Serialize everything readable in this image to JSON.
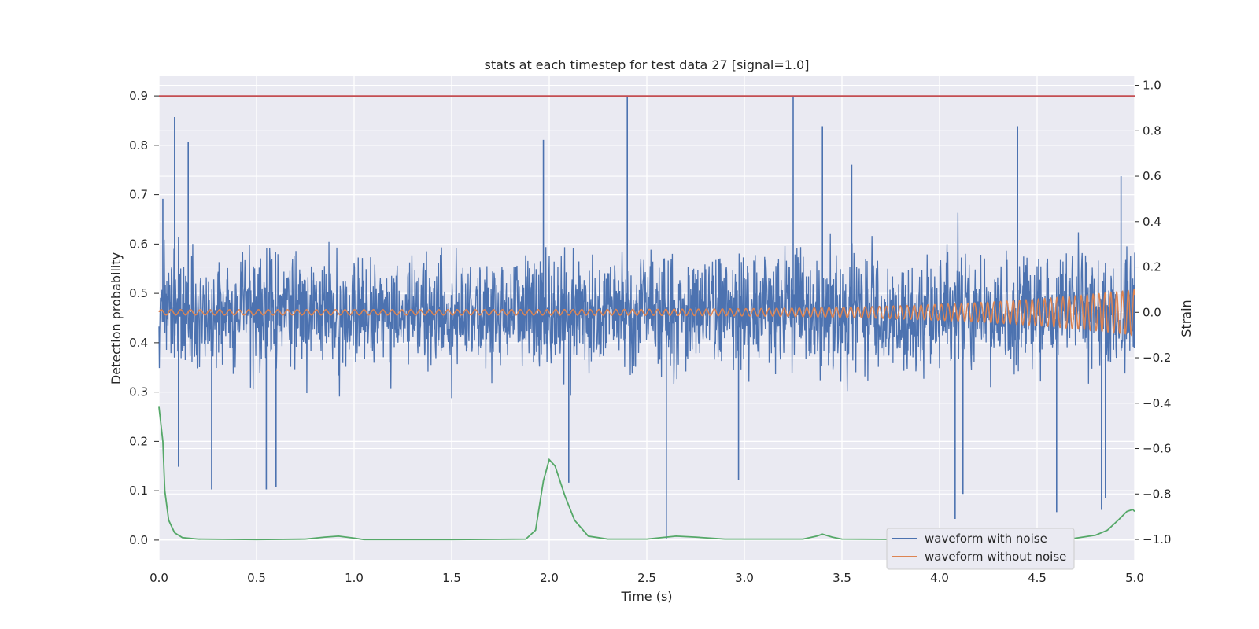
{
  "chart_data": {
    "type": "line",
    "title": "stats at each timestep for test data 27 [signal=1.0]",
    "xlabel": "Time (s)",
    "ylabel": "Detection probability",
    "y2label": "Strain",
    "xlim": [
      0.0,
      5.0
    ],
    "ylim": [
      -0.04,
      0.94
    ],
    "y2lim": [
      -1.09,
      1.04
    ],
    "xticks": [
      "0.0",
      "0.5",
      "1.0",
      "1.5",
      "2.0",
      "2.5",
      "3.0",
      "3.5",
      "4.0",
      "4.5",
      "5.0"
    ],
    "yticks": [
      "0.0",
      "0.1",
      "0.2",
      "0.3",
      "0.4",
      "0.5",
      "0.6",
      "0.7",
      "0.8",
      "0.9"
    ],
    "y2ticks": [
      "−1.0",
      "−0.8",
      "−0.6",
      "−0.4",
      "−0.2",
      "0.0",
      "0.2",
      "0.4",
      "0.6",
      "0.8",
      "1.0"
    ],
    "grid": true,
    "legend_position": "lower-right",
    "threshold": {
      "value": 0.9,
      "color": "#c44e52"
    },
    "series": [
      {
        "name": "waveform with noise",
        "axis": "right",
        "color": "#4c72b0",
        "description": "noisy strain, roughly -0.4..0.4 with spikes",
        "spikes": [
          {
            "x": 0.02,
            "y": 0.5
          },
          {
            "x": 0.08,
            "y": 0.86
          },
          {
            "x": 0.1,
            "y": -0.68
          },
          {
            "x": 0.15,
            "y": 0.75
          },
          {
            "x": 0.27,
            "y": -0.78
          },
          {
            "x": 0.55,
            "y": -0.78
          },
          {
            "x": 0.6,
            "y": -0.77
          },
          {
            "x": 1.97,
            "y": 0.76
          },
          {
            "x": 2.1,
            "y": -0.75
          },
          {
            "x": 2.4,
            "y": 0.95
          },
          {
            "x": 2.6,
            "y": -1.0
          },
          {
            "x": 2.97,
            "y": -0.74
          },
          {
            "x": 3.25,
            "y": 0.95
          },
          {
            "x": 3.4,
            "y": 0.82
          },
          {
            "x": 3.55,
            "y": 0.65
          },
          {
            "x": 4.08,
            "y": -0.91
          },
          {
            "x": 4.12,
            "y": -0.8
          },
          {
            "x": 4.4,
            "y": 0.82
          },
          {
            "x": 4.6,
            "y": -0.88
          },
          {
            "x": 4.83,
            "y": -0.87
          },
          {
            "x": 4.85,
            "y": -0.82
          },
          {
            "x": 4.93,
            "y": 0.6
          }
        ]
      },
      {
        "name": "waveform without noise",
        "axis": "right",
        "color": "#dd8452",
        "description": "chirp centred at 0, amplitude growing to ~0.1 at 5.0 s"
      },
      {
        "name": "",
        "axis": "left",
        "color": "#55a868",
        "points": [
          [
            0.0,
            0.27
          ],
          [
            0.02,
            0.2
          ],
          [
            0.03,
            0.1
          ],
          [
            0.05,
            0.04
          ],
          [
            0.08,
            0.015
          ],
          [
            0.12,
            0.005
          ],
          [
            0.2,
            0.002
          ],
          [
            0.5,
            0.001
          ],
          [
            0.75,
            0.002
          ],
          [
            0.85,
            0.006
          ],
          [
            0.92,
            0.008
          ],
          [
            1.0,
            0.004
          ],
          [
            1.05,
            0.001
          ],
          [
            1.5,
            0.001
          ],
          [
            1.88,
            0.002
          ],
          [
            1.93,
            0.02
          ],
          [
            1.97,
            0.12
          ],
          [
            2.0,
            0.163
          ],
          [
            2.03,
            0.15
          ],
          [
            2.08,
            0.09
          ],
          [
            2.13,
            0.04
          ],
          [
            2.2,
            0.008
          ],
          [
            2.3,
            0.002
          ],
          [
            2.5,
            0.002
          ],
          [
            2.6,
            0.006
          ],
          [
            2.65,
            0.008
          ],
          [
            2.75,
            0.006
          ],
          [
            2.9,
            0.002
          ],
          [
            3.3,
            0.002
          ],
          [
            3.37,
            0.008
          ],
          [
            3.4,
            0.012
          ],
          [
            3.45,
            0.006
          ],
          [
            3.5,
            0.002
          ],
          [
            4.0,
            0.001
          ],
          [
            4.5,
            0.001
          ],
          [
            4.7,
            0.004
          ],
          [
            4.8,
            0.01
          ],
          [
            4.86,
            0.02
          ],
          [
            4.92,
            0.042
          ],
          [
            4.96,
            0.058
          ],
          [
            4.99,
            0.062
          ],
          [
            5.0,
            0.058
          ]
        ]
      }
    ]
  }
}
